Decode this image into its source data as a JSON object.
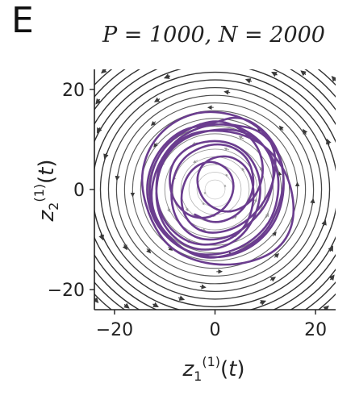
{
  "panel_label": "E",
  "chart_data": {
    "type": "line",
    "title": "P = 1000, N = 2000",
    "xlabel": "z_1^(1)(t)",
    "ylabel": "z_2^(1)(t)",
    "xlim": [
      -24,
      24
    ],
    "ylim": [
      -24,
      24
    ],
    "xticks": [
      -20,
      0,
      20
    ],
    "yticks": [
      -20,
      0,
      20
    ],
    "grid": false,
    "background": "vector field streamlines (counter-clockwise rotation around origin)",
    "colors": {
      "trajectory": "#6b3d8f",
      "streamline_outer": "#3a3a3a",
      "streamline_inner": "#bdbdbd",
      "axes": "#222222"
    },
    "series": [
      {
        "values_approx": [
          [
            3,
            13
          ],
          [
            9,
            12
          ],
          [
            13,
            7
          ],
          [
            14,
            0
          ],
          [
            12,
            -7
          ],
          [
            7,
            -12
          ],
          [
            0,
            -14
          ],
          [
            -7,
            -12
          ],
          [
            -12,
            -7
          ],
          [
            -14,
            0
          ],
          [
            -12,
            7
          ],
          [
            -7,
            12
          ],
          [
            -1,
            13
          ],
          [
            5,
            15
          ],
          [
            11,
            11
          ],
          [
            14,
            4
          ],
          [
            13,
            -3
          ],
          [
            10,
            -9
          ],
          [
            4,
            -13
          ],
          [
            -3,
            -14
          ],
          [
            -9,
            -10
          ],
          [
            -13,
            -4
          ],
          [
            -13,
            3
          ],
          [
            -10,
            9
          ],
          [
            -4,
            13
          ],
          [
            2,
            14
          ],
          [
            8,
            10
          ],
          [
            10,
            4
          ],
          [
            8,
            -2
          ],
          [
            3,
            -5
          ],
          [
            -2,
            -3
          ],
          [
            -4,
            2
          ],
          [
            -2,
            6
          ],
          [
            3,
            7
          ],
          [
            7,
            4
          ],
          [
            8,
            -2
          ],
          [
            6,
            -8
          ],
          [
            1,
            -11
          ],
          [
            -5,
            -11
          ],
          [
            -10,
            -7
          ],
          [
            -12,
            -1
          ],
          [
            -11,
            6
          ],
          [
            -6,
            11
          ],
          [
            0,
            12
          ],
          [
            6,
            11
          ],
          [
            11,
            8
          ],
          [
            15,
            2
          ],
          [
            16,
            -6
          ],
          [
            13,
            -12
          ],
          [
            6,
            -15
          ],
          [
            -2,
            -15
          ],
          [
            -9,
            -12
          ],
          [
            -13,
            -6
          ],
          [
            -15,
            2
          ],
          [
            -13,
            9
          ],
          [
            -8,
            14
          ],
          [
            -1,
            16
          ],
          [
            7,
            14
          ],
          [
            12,
            9
          ],
          [
            12,
            2
          ],
          [
            9,
            -4
          ],
          [
            4,
            -8
          ],
          [
            -2,
            -9
          ],
          [
            -6,
            -6
          ],
          [
            -7,
            -1
          ],
          [
            -5,
            4
          ],
          [
            -1,
            6
          ],
          [
            3,
            4
          ],
          [
            4,
            0
          ],
          [
            2,
            -4
          ],
          [
            -2,
            -6
          ],
          [
            -6,
            -5
          ],
          [
            -9,
            -1
          ],
          [
            -9,
            5
          ],
          [
            -5,
            9
          ],
          [
            1,
            10
          ],
          [
            6,
            8
          ],
          [
            9,
            3
          ],
          [
            9,
            -3
          ],
          [
            6,
            -9
          ],
          [
            1,
            -12
          ],
          [
            -5,
            -12
          ],
          [
            -10,
            -8
          ],
          [
            -12,
            -2
          ],
          [
            -11,
            5
          ],
          [
            -7,
            10
          ],
          [
            -1,
            12
          ],
          [
            5,
            12
          ],
          [
            10,
            9
          ],
          [
            13,
            3
          ],
          [
            12,
            -5
          ],
          [
            8,
            -10
          ],
          [
            2,
            -13
          ],
          [
            -5,
            -13
          ],
          [
            -10,
            -9
          ],
          [
            -13,
            -3
          ],
          [
            -12,
            4
          ],
          [
            -8,
            10
          ],
          [
            -2,
            13
          ],
          [
            4,
            13
          ],
          [
            9,
            10
          ],
          [
            12,
            5
          ],
          [
            11,
            -2
          ],
          [
            7,
            -7
          ],
          [
            2,
            -10
          ],
          [
            -4,
            -10
          ],
          [
            -8,
            -6
          ],
          [
            -9,
            0
          ],
          [
            -7,
            6
          ],
          [
            -2,
            9
          ],
          [
            3,
            9
          ],
          [
            7,
            6
          ],
          [
            8,
            0
          ],
          [
            5,
            -5
          ],
          [
            0,
            -7
          ],
          [
            -4,
            -5
          ]
        ]
      }
    ]
  }
}
